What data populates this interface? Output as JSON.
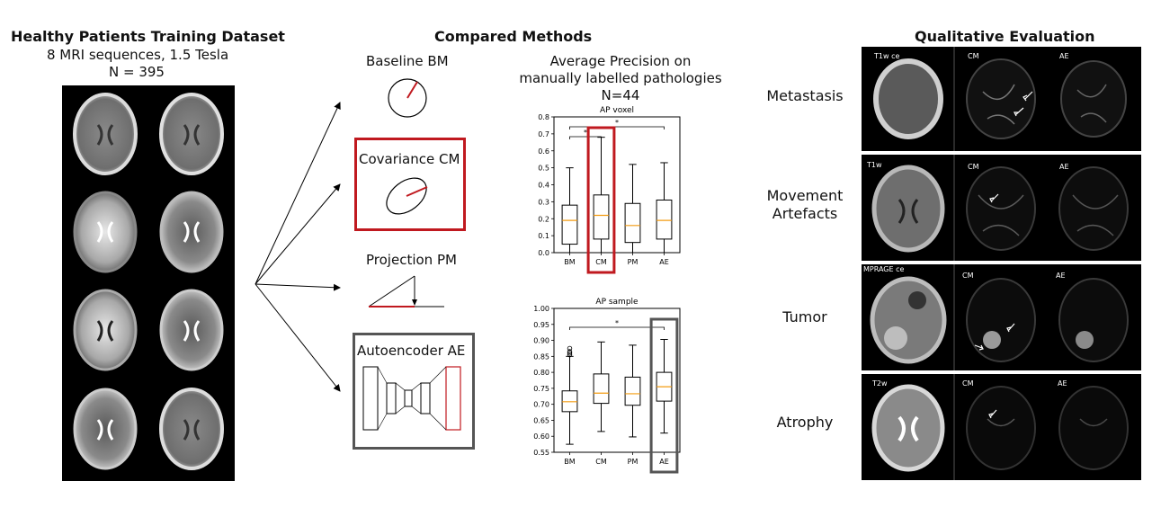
{
  "left": {
    "title": "Healthy Patients Training Dataset",
    "line1": "8 MRI sequences, 1.5 Tesla",
    "line2": "N = 395"
  },
  "middle": {
    "title": "Compared Methods",
    "methods": [
      {
        "label": "Baseline BM",
        "highlight": "none"
      },
      {
        "label": "Covariance CM",
        "highlight": "#c0191f"
      },
      {
        "label": "Projection PM",
        "highlight": "none"
      },
      {
        "label": "Autoencoder AE",
        "highlight": "#555555"
      }
    ]
  },
  "ap": {
    "line1": "Average Precision on",
    "line2": "manually labelled pathologies",
    "line3": "N=44"
  },
  "chart_data": [
    {
      "type": "box",
      "title": "AP voxel",
      "categories": [
        "BM",
        "CM",
        "PM",
        "AE"
      ],
      "ylim": [
        0.0,
        0.8
      ],
      "yticks": [
        "0.0",
        "0.1",
        "0.2",
        "0.3",
        "0.4",
        "0.5",
        "0.6",
        "0.7",
        "0.8"
      ],
      "boxes": [
        {
          "min": 0.0,
          "q1": 0.05,
          "median": 0.19,
          "q3": 0.28,
          "max": 0.5
        },
        {
          "min": 0.0,
          "q1": 0.08,
          "median": 0.22,
          "q3": 0.34,
          "max": 0.68
        },
        {
          "min": 0.0,
          "q1": 0.06,
          "median": 0.16,
          "q3": 0.29,
          "max": 0.52
        },
        {
          "min": 0.0,
          "q1": 0.08,
          "median": 0.19,
          "q3": 0.31,
          "max": 0.53
        }
      ],
      "significance": [
        {
          "from": "BM",
          "to": "CM",
          "label": "*"
        },
        {
          "from": "BM",
          "to": "AE",
          "label": "*"
        }
      ],
      "highlight": {
        "category": "CM",
        "color": "#c0191f"
      }
    },
    {
      "type": "box",
      "title": "AP sample",
      "categories": [
        "BM",
        "CM",
        "PM",
        "AE"
      ],
      "ylim": [
        0.55,
        1.0
      ],
      "yticks": [
        "0.55",
        "0.60",
        "0.65",
        "0.70",
        "0.75",
        "0.80",
        "0.85",
        "0.90",
        "0.95",
        "1.00"
      ],
      "boxes": [
        {
          "min": 0.575,
          "q1": 0.677,
          "median": 0.708,
          "q3": 0.742,
          "max": 0.85,
          "outliers": [
            0.855,
            0.86,
            0.865,
            0.875
          ]
        },
        {
          "min": 0.615,
          "q1": 0.703,
          "median": 0.735,
          "q3": 0.795,
          "max": 0.895
        },
        {
          "min": 0.598,
          "q1": 0.697,
          "median": 0.733,
          "q3": 0.785,
          "max": 0.885
        },
        {
          "min": 0.61,
          "q1": 0.71,
          "median": 0.755,
          "q3": 0.8,
          "max": 0.903
        }
      ],
      "significance": [
        {
          "from": "BM",
          "to": "AE",
          "label": "*"
        }
      ],
      "highlight": {
        "category": "AE",
        "color": "#555555"
      }
    }
  ],
  "qualitative": {
    "title": "Qualitative Evaluation",
    "rows": [
      {
        "label_lines": [
          "Metastasis"
        ],
        "seq": "T1w ce",
        "cm": "CM",
        "ae": "AE"
      },
      {
        "label_lines": [
          "Movement",
          "Artefacts"
        ],
        "seq": "T1w",
        "cm": "CM",
        "ae": "AE"
      },
      {
        "label_lines": [
          "Tumor"
        ],
        "seq": "MPRAGE ce",
        "cm": "CM",
        "ae": "AE"
      },
      {
        "label_lines": [
          "Atrophy"
        ],
        "seq": "T2w",
        "cm": "CM",
        "ae": "AE"
      }
    ]
  },
  "colors": {
    "red": "#c0191f",
    "gray": "#555555",
    "median": "#f39c12"
  }
}
